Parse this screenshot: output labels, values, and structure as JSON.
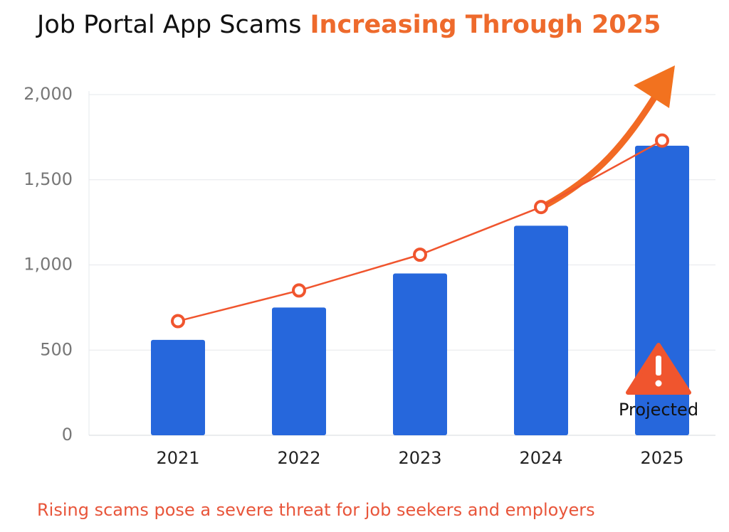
{
  "chart_data": {
    "type": "bar-line",
    "title": "Job Portal App Scams",
    "title_highlight": "Increasing Through 2025",
    "categories": [
      "2021",
      "2022",
      "2023",
      "2024",
      "2025"
    ],
    "series": [
      {
        "type": "bar",
        "color": "#2667dc",
        "values": [
          560,
          750,
          950,
          1230,
          1700
        ]
      },
      {
        "type": "line",
        "color": "#f0552e",
        "values": [
          670,
          850,
          1060,
          1340,
          1730
        ]
      }
    ],
    "ylim": [
      0,
      2000
    ],
    "yticks": [
      0,
      500,
      {
        "value": 1000,
        "label": "1,000"
      },
      {
        "value": 1500,
        "label": "1,500"
      },
      {
        "value": 2000,
        "label": "2,000"
      }
    ],
    "grid": true,
    "annotation": "Projected",
    "footnote": "Rising scams pose a severe threat for job seekers and employers"
  }
}
